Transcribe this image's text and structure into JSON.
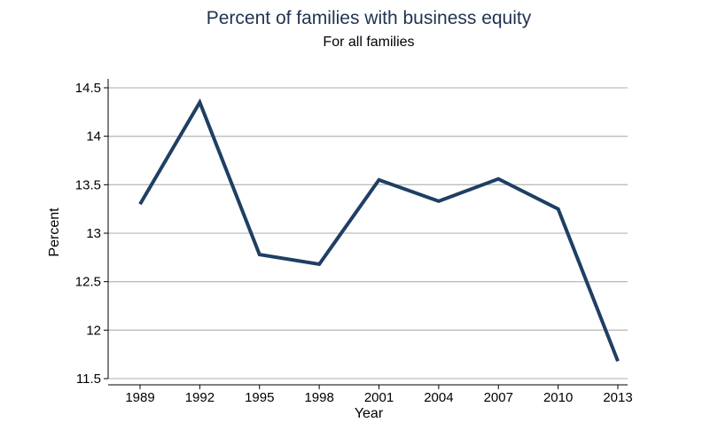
{
  "chart_data": {
    "type": "line",
    "title": "Percent of families with business equity",
    "subtitle": "For all families",
    "xlabel": "Year",
    "ylabel": "Percent",
    "categories": [
      "1989",
      "1992",
      "1995",
      "1998",
      "2001",
      "2004",
      "2007",
      "2010",
      "2013"
    ],
    "series": [
      {
        "values": [
          13.3,
          14.35,
          12.78,
          12.68,
          13.55,
          13.33,
          13.56,
          13.25,
          11.68
        ]
      }
    ],
    "yticks": [
      "14.5",
      "14",
      "13.5",
      "13",
      "12.5",
      "12",
      "11.5"
    ],
    "ylim": [
      11.5,
      14.5
    ],
    "grid": true,
    "line_color": "#1f3f63",
    "grid_color": "#bdbdbd"
  }
}
